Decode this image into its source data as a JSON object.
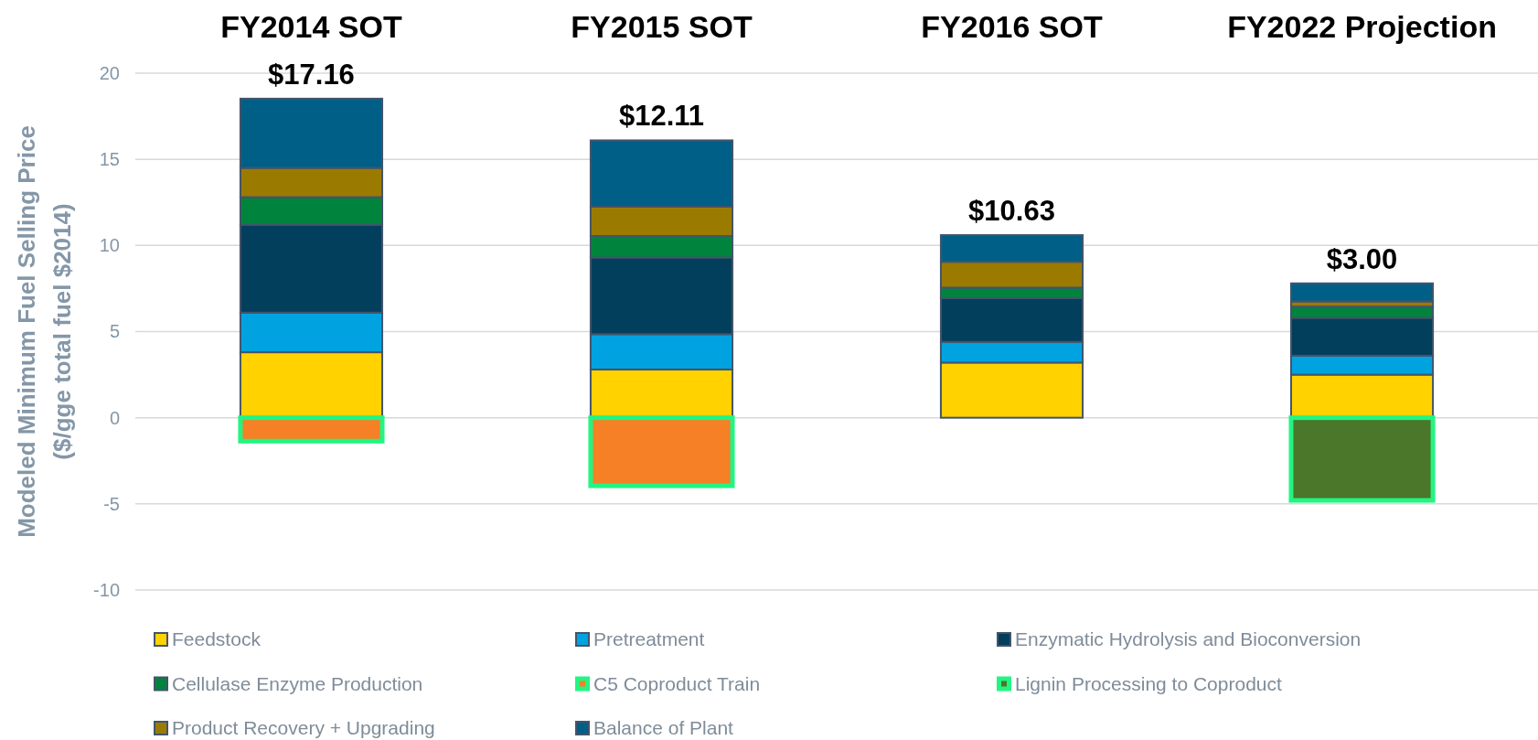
{
  "chart_data": {
    "type": "bar",
    "stacked": true,
    "categories": [
      "FY2014 SOT",
      "FY2015 SOT",
      "FY2016 SOT",
      "FY2022 Projection"
    ],
    "ylabel": "Modeled Minimum Fuel Selling Price\n($/gge total fuel $2014)",
    "ylim": [
      -10,
      20
    ],
    "yticks": [
      -10,
      -5,
      0,
      5,
      10,
      15,
      20
    ],
    "grid": "y",
    "legend": "bottom",
    "totals": [
      "$17.16",
      "$12.11",
      "$10.63",
      "$3.00"
    ],
    "series": [
      {
        "name": "Feedstock",
        "color": "#ffd200",
        "values": [
          3.8,
          2.8,
          3.2,
          2.5
        ]
      },
      {
        "name": "Pretreatment",
        "color": "#00a3e0",
        "values": [
          2.3,
          2.05,
          1.2,
          1.1
        ]
      },
      {
        "name": "Enzymatic Hydrolysis and Bioconversion",
        "color": "#023f5c",
        "values": [
          5.1,
          4.45,
          2.55,
          2.2
        ]
      },
      {
        "name": "Cellulase Enzyme Production",
        "color": "#00843d",
        "values": [
          1.6,
          1.25,
          0.6,
          0.65
        ]
      },
      {
        "name": "C5 Coproduct Train",
        "color": "#f58025",
        "values": [
          -1.36,
          -3.95,
          null,
          null
        ]
      },
      {
        "name": "Lignin Processing to Coproduct",
        "color": "#4a7729",
        "values": [
          null,
          null,
          null,
          -4.8
        ]
      },
      {
        "name": "Product Recovery + Upgrading",
        "color": "#9a7b00",
        "values": [
          1.7,
          1.7,
          1.5,
          0.3
        ]
      },
      {
        "name": "Balance of Plant",
        "color": "#005f87",
        "values": [
          4.02,
          3.85,
          1.55,
          1.05
        ]
      }
    ]
  }
}
